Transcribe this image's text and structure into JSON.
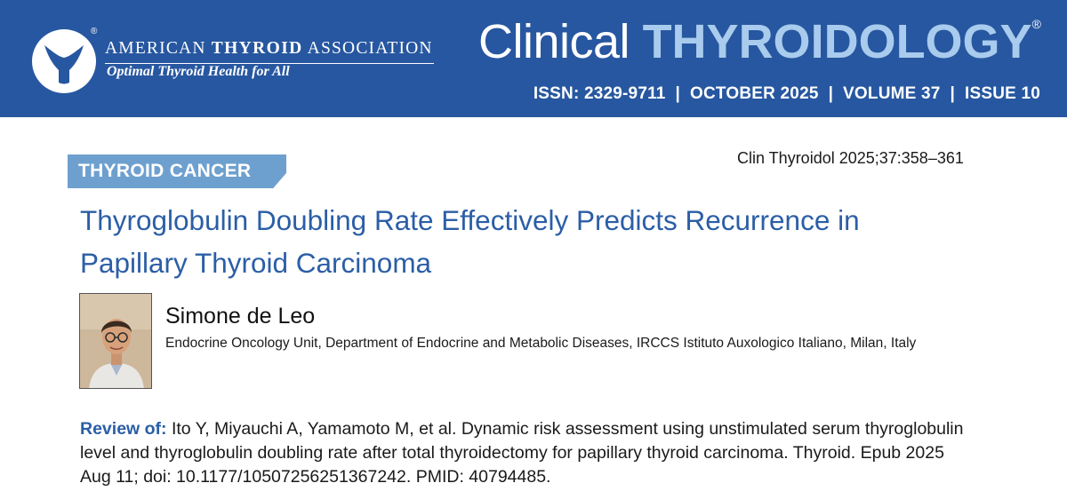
{
  "banner": {
    "org_name_prefix": "AMERICAN ",
    "org_name_bold": "THYROID",
    "org_name_suffix": " ASSOCIATION",
    "org_reg_mark": "®",
    "org_tagline": "Optimal Thyroid Health for All",
    "journal_title_plain": "Clinical ",
    "journal_title_strong": "THYROIDOLOGY",
    "journal_reg_mark": "®",
    "issue_line": "ISSN: 2329-9711  |  OCTOBER 2025  |  VOLUME 37  |  ISSUE 10",
    "colors": {
      "background": "#2757a0",
      "accent_light": "#a9cbed"
    }
  },
  "article": {
    "section": "THYROID CANCER",
    "citation": "Clin Thyroidol 2025;37:358–361",
    "title": "Thyroglobulin Doubling Rate Effectively Predicts Recurrence in Papillary Thyroid Carcinoma",
    "colors": {
      "title": "#2b5ea6",
      "section_tag": "#6ea0cf"
    }
  },
  "author": {
    "name": "Simone de Leo",
    "affiliation": "Endocrine Oncology Unit, Department of Endocrine and Metabolic Diseases, IRCCS Istituto Auxologico Italiano, Milan, Italy"
  },
  "review": {
    "label": "Review of:",
    "text": " Ito Y, Miyauchi A, Yamamoto M, et al. Dynamic risk assessment using unstimulated serum thyroglobulin level and thyroglobulin doubling rate after total thyroidectomy for papillary thyroid carcinoma. Thyroid. Epub 2025 Aug 11; doi: 10.1177/10507256251367242. PMID: 40794485."
  }
}
